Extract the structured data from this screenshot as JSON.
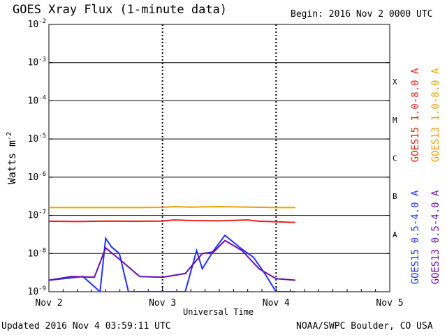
{
  "header": {
    "title": "GOES Xray Flux (1-minute data)",
    "begin": "Begin:  2016 Nov 2 0000 UTC"
  },
  "footer": {
    "updated": "Updated 2016 Nov  4 03:59:11 UTC",
    "credit": "NOAA/SWPC Boulder, CO USA"
  },
  "chart_data": {
    "type": "line",
    "title": "GOES Xray Flux (1-minute data)",
    "xlabel": "Universal Time",
    "ylabel": "Watts m",
    "ylabel_exponent": "-2",
    "x_ticks": [
      "Nov 2",
      "Nov 3",
      "Nov 4",
      "Nov 5"
    ],
    "xlim": [
      "2016-11-02 00:00",
      "2016-11-05 00:00"
    ],
    "y_scale": "log",
    "ylim": [
      1e-09,
      0.01
    ],
    "y_ticks": [
      {
        "value": 1e-09,
        "base": "10",
        "exp": "-9"
      },
      {
        "value": 1e-08,
        "base": "10",
        "exp": "-8"
      },
      {
        "value": 1e-07,
        "base": "10",
        "exp": "-7"
      },
      {
        "value": 1e-06,
        "base": "10",
        "exp": "-6"
      },
      {
        "value": 1e-05,
        "base": "10",
        "exp": "-5"
      },
      {
        "value": 0.0001,
        "base": "10",
        "exp": "-4"
      },
      {
        "value": 0.001,
        "base": "10",
        "exp": "-3"
      },
      {
        "value": 0.01,
        "base": "10",
        "exp": "-2"
      }
    ],
    "flare_classes": [
      {
        "label": "A",
        "low": 1e-08,
        "high": 1e-07
      },
      {
        "label": "B",
        "low": 1e-07,
        "high": 1e-06
      },
      {
        "label": "C",
        "low": 1e-06,
        "high": 1e-05
      },
      {
        "label": "M",
        "low": 1e-05,
        "high": 0.0001
      },
      {
        "label": "X",
        "low": 0.0001,
        "high": 0.001
      }
    ],
    "grid": "horizontal lines at each decade from 1e-8 to 1e-3; dotted vertical lines at day boundaries",
    "series": [
      {
        "name": "GOES15 1.0-8.0 A",
        "color": "#e8201a",
        "x_days": [
          0,
          0.25,
          0.5,
          0.75,
          1.0,
          1.1,
          1.25,
          1.5,
          1.75,
          1.85,
          2.0,
          2.17
        ],
        "y": [
          7e-08,
          6.9e-08,
          7.1e-08,
          7e-08,
          7.1e-08,
          7.6e-08,
          7.3e-08,
          7.2e-08,
          7.6e-08,
          7e-08,
          6.8e-08,
          6.5e-08
        ]
      },
      {
        "name": "GOES13 1.0-8.0 A",
        "color": "#f0a000",
        "x_days": [
          0,
          0.25,
          0.5,
          0.75,
          1.0,
          1.1,
          1.25,
          1.5,
          1.75,
          2.0,
          2.17
        ],
        "y": [
          1.6e-07,
          1.6e-07,
          1.6e-07,
          1.6e-07,
          1.62e-07,
          1.7e-07,
          1.65e-07,
          1.7e-07,
          1.65e-07,
          1.6e-07,
          1.6e-07
        ]
      },
      {
        "name": "GOES15 0.5-4.0 A",
        "color": "#1e30ff",
        "x_days": [
          0,
          0.3,
          0.45,
          0.5,
          0.55,
          0.62,
          0.7,
          1.0,
          1.2,
          1.3,
          1.35,
          1.45,
          1.55,
          1.7,
          1.8,
          1.9,
          2.0,
          2.17
        ],
        "y": [
          2e-09,
          2.5e-09,
          1e-09,
          2.5e-08,
          1.5e-08,
          1e-08,
          1e-09,
          1e-09,
          1e-09,
          1.2e-08,
          4e-09,
          1.2e-08,
          3e-08,
          1.3e-08,
          8e-09,
          3e-09,
          1e-09,
          1e-09
        ]
      },
      {
        "name": "GOES13 0.5-4.0 A",
        "color": "#6a0dad",
        "x_days": [
          0,
          0.2,
          0.4,
          0.5,
          0.6,
          0.8,
          1.0,
          1.2,
          1.35,
          1.45,
          1.55,
          1.7,
          1.85,
          2.0,
          2.17
        ],
        "y": [
          2e-09,
          2.5e-09,
          2.4e-09,
          1.4e-08,
          8e-09,
          2.5e-09,
          2.4e-09,
          3e-09,
          1e-08,
          1.1e-08,
          2.2e-08,
          1.2e-08,
          4e-09,
          2.2e-09,
          2e-09
        ]
      }
    ]
  }
}
